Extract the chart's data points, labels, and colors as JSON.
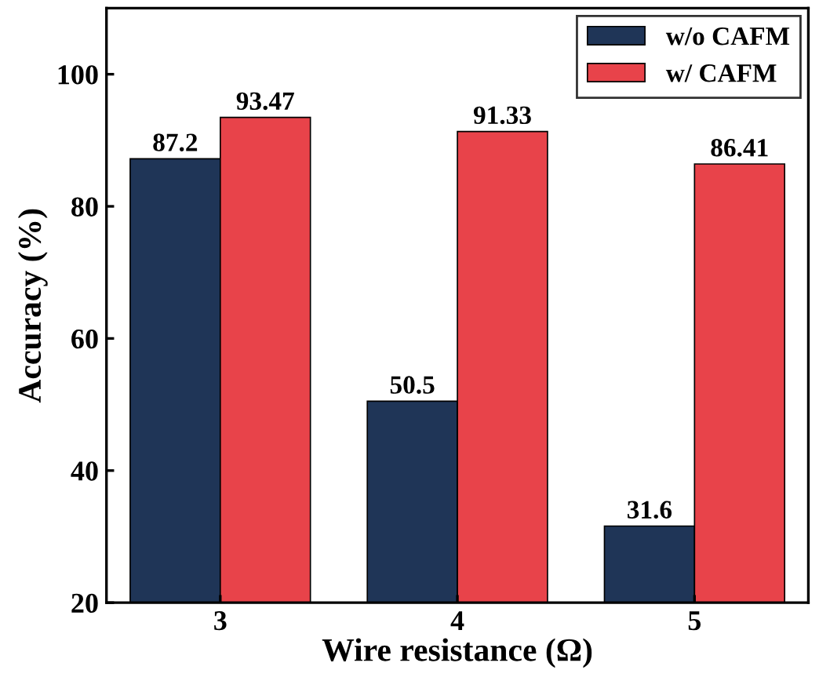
{
  "chart_data": {
    "type": "bar",
    "xlabel": "Wire resistance (Ω)",
    "ylabel": "Accuracy (%)",
    "categories": [
      "3",
      "4",
      "5"
    ],
    "series": [
      {
        "name": "w/o CAFM",
        "color": "#1f3557",
        "values": [
          87.2,
          50.5,
          31.6
        ]
      },
      {
        "name": "w/ CAFM",
        "color": "#e8434a",
        "values": [
          93.47,
          91.33,
          86.41
        ]
      }
    ],
    "ylim": [
      20,
      110
    ],
    "yticks": [
      20,
      40,
      60,
      80,
      100
    ],
    "data_labels": true,
    "legend": "top right",
    "grid": false
  }
}
